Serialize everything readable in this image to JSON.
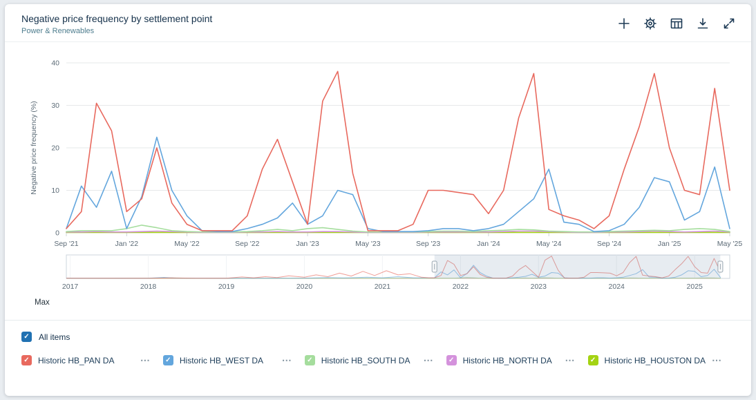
{
  "card": {
    "title": "Negative price frequency by settlement point",
    "subtitle": "Power & Renewables",
    "toolbar": {
      "buttons": [
        {
          "name": "add",
          "icon": "plus-icon"
        },
        {
          "name": "settings",
          "icon": "gear-icon"
        },
        {
          "name": "data-table",
          "icon": "table-icon"
        },
        {
          "name": "download",
          "icon": "download-icon"
        },
        {
          "name": "expand",
          "icon": "expand-icon"
        }
      ]
    }
  },
  "chart_data": {
    "type": "line",
    "title": "Negative price frequency by settlement point",
    "xlabel": "",
    "ylabel": "Negative price frequency (%)",
    "ylim": [
      0,
      40
    ],
    "yticks": [
      0,
      10,
      20,
      30,
      40
    ],
    "grid": "horizontal",
    "legend_position": "bottom",
    "x_start_month": "2021-09",
    "months_count": 45,
    "xtick_labels": [
      "Sep '21",
      "Jan '22",
      "May '22",
      "Sep '22",
      "Jan '23",
      "May '23",
      "Sep '23",
      "Jan '24",
      "May '24",
      "Sep '24",
      "Jan '25",
      "May '25"
    ],
    "xtick_month_indices": [
      0,
      4,
      8,
      12,
      16,
      20,
      24,
      28,
      32,
      36,
      40,
      44
    ],
    "series": [
      {
        "name": "Historic HB_PAN DA",
        "color": "#e8695e",
        "values": [
          1,
          5,
          30.5,
          24,
          5,
          8,
          20,
          7,
          2,
          0.5,
          0.5,
          0.5,
          4,
          15,
          22,
          12,
          2,
          31,
          38,
          14,
          0.5,
          0.5,
          0.5,
          2,
          10,
          10,
          9.5,
          9,
          4.5,
          10,
          27,
          37.5,
          5.5,
          4,
          3,
          1,
          4,
          15,
          25,
          37.5,
          20,
          10,
          9,
          34,
          10
        ]
      },
      {
        "name": "Historic HB_WEST DA",
        "color": "#63a6dd",
        "values": [
          1,
          11,
          6,
          14.5,
          1,
          8.5,
          22.5,
          10,
          4,
          0.5,
          0.3,
          0.3,
          1,
          2,
          3.5,
          7,
          2,
          4,
          10,
          9,
          1,
          0.3,
          0.3,
          0.3,
          0.5,
          1,
          1,
          0.5,
          1,
          2,
          5,
          8,
          15,
          2.5,
          2,
          0.3,
          0.5,
          2,
          6,
          13,
          12,
          3,
          5,
          15.5,
          1
        ]
      },
      {
        "name": "Historic HB_SOUTH DA",
        "color": "#a5dd9d",
        "values": [
          0.3,
          0.5,
          0.5,
          0.5,
          1,
          1.8,
          1.2,
          0.5,
          0.3,
          0.2,
          0.2,
          0.2,
          0.3,
          0.5,
          0.8,
          0.5,
          1,
          1.2,
          0.8,
          0.4,
          0.2,
          0.2,
          0.2,
          0.2,
          0.3,
          0.4,
          0.4,
          0.3,
          0.5,
          0.6,
          0.8,
          0.7,
          0.4,
          0.3,
          0.2,
          0.2,
          0.3,
          0.4,
          0.5,
          0.6,
          0.5,
          0.8,
          1,
          0.8,
          0.3
        ]
      },
      {
        "name": "Historic HB_NORTH DA",
        "color": "#d492dc",
        "values": [
          0.2,
          0.2,
          0.3,
          0.2,
          0.2,
          0.3,
          0.4,
          0.3,
          0.2,
          0.1,
          0.1,
          0.1,
          0.2,
          0.2,
          0.3,
          0.2,
          0.2,
          0.3,
          0.3,
          0.2,
          0.1,
          0.1,
          0.1,
          0.1,
          0.2,
          0.2,
          0.2,
          0.2,
          0.2,
          0.3,
          0.4,
          0.4,
          0.3,
          0.2,
          0.1,
          0.1,
          0.2,
          0.2,
          0.3,
          0.4,
          0.3,
          0.2,
          0.3,
          0.4,
          0.2
        ]
      },
      {
        "name": "Historic HB_HOUSTON DA",
        "color": "#a4d313",
        "values": [
          0.1,
          0.1,
          0.1,
          0.1,
          0.1,
          0.1,
          0.1,
          0.1,
          0.1,
          0.1,
          0.1,
          0.1,
          0.1,
          0.1,
          0.1,
          0.1,
          0.1,
          0.1,
          0.1,
          0.1,
          0.1,
          0.1,
          0.1,
          0.1,
          0.1,
          0.1,
          0.1,
          0.1,
          0.1,
          0.1,
          0.1,
          0.1,
          0.1,
          0.1,
          0.1,
          0.1,
          0.1,
          0.1,
          0.1,
          0.1,
          0.1,
          0.1,
          0.1,
          0.1,
          0.1
        ]
      }
    ],
    "navigator": {
      "range": [
        2016.95,
        2025.45
      ],
      "selected_range": [
        2021.667,
        2025.33
      ],
      "main_start_year": 2021.667,
      "year_labels": [
        "2017",
        "2018",
        "2019",
        "2020",
        "2021",
        "2022",
        "2023",
        "2024",
        "2025"
      ],
      "history": [
        {
          "name": "Historic HB_PAN DA",
          "points": [
            [
              2016.95,
              0.2
            ],
            [
              2017.3,
              0.4
            ],
            [
              2017.6,
              0.2
            ],
            [
              2018,
              0.3
            ],
            [
              2018.3,
              0.8
            ],
            [
              2018.6,
              0.3
            ],
            [
              2019,
              0.3
            ],
            [
              2019.2,
              2.5
            ],
            [
              2019.35,
              1
            ],
            [
              2019.5,
              3
            ],
            [
              2019.65,
              1.5
            ],
            [
              2019.8,
              4.5
            ],
            [
              2020,
              2
            ],
            [
              2020.15,
              6
            ],
            [
              2020.3,
              3
            ],
            [
              2020.45,
              9
            ],
            [
              2020.6,
              4
            ],
            [
              2020.75,
              12
            ],
            [
              2020.9,
              5
            ],
            [
              2021.05,
              13
            ],
            [
              2021.2,
              6
            ],
            [
              2021.35,
              8
            ],
            [
              2021.5,
              2
            ],
            [
              2021.6,
              1
            ]
          ]
        },
        {
          "name": "Historic HB_WEST DA",
          "points": [
            [
              2016.95,
              0.2
            ],
            [
              2017.5,
              0.2
            ],
            [
              2018,
              0.3
            ],
            [
              2018.2,
              1.8
            ],
            [
              2018.35,
              0.5
            ],
            [
              2019,
              0.2
            ],
            [
              2019.5,
              0.4
            ],
            [
              2020,
              0.5
            ],
            [
              2020.3,
              1.5
            ],
            [
              2020.5,
              0.8
            ],
            [
              2020.8,
              2
            ],
            [
              2021,
              1
            ],
            [
              2021.2,
              3
            ],
            [
              2021.4,
              1
            ],
            [
              2021.6,
              1
            ]
          ]
        },
        {
          "name": "Historic HB_SOUTH DA",
          "points": [
            [
              2016.95,
              0.2
            ],
            [
              2017.5,
              0.4
            ],
            [
              2018,
              0.6
            ],
            [
              2018.3,
              1
            ],
            [
              2018.6,
              0.4
            ],
            [
              2019,
              0.3
            ],
            [
              2019.5,
              0.3
            ],
            [
              2020,
              0.5
            ],
            [
              2020.5,
              0.6
            ],
            [
              2021,
              0.5
            ],
            [
              2021.3,
              0.8
            ],
            [
              2021.6,
              0.3
            ]
          ]
        },
        {
          "name": "Historic HB_NORTH DA",
          "points": [
            [
              2016.95,
              0.2
            ],
            [
              2018,
              0.2
            ],
            [
              2019,
              0.2
            ],
            [
              2020,
              0.3
            ],
            [
              2021,
              0.2
            ],
            [
              2021.6,
              0.2
            ]
          ]
        },
        {
          "name": "Historic HB_HOUSTON DA",
          "points": [
            [
              2016.95,
              0.1
            ],
            [
              2018,
              0.1
            ],
            [
              2019,
              0.1
            ],
            [
              2020,
              0.1
            ],
            [
              2021,
              0.1
            ],
            [
              2021.6,
              0.1
            ]
          ]
        }
      ]
    },
    "range_preset": "Max"
  },
  "legend": {
    "all_items_label": "All items",
    "all_items_color": "#2071b2",
    "check_glyph": "✓",
    "overflow_label": "⋯",
    "items": [
      {
        "label": "Historic HB_PAN DA",
        "color": "#e8695e"
      },
      {
        "label": "Historic HB_WEST DA",
        "color": "#63a6dd"
      },
      {
        "label": "Historic HB_SOUTH DA",
        "color": "#a5dd9d"
      },
      {
        "label": "Historic HB_NORTH DA",
        "color": "#d492dc"
      },
      {
        "label": "Historic HB_HOUSTON DA",
        "color": "#a4d313"
      }
    ]
  }
}
